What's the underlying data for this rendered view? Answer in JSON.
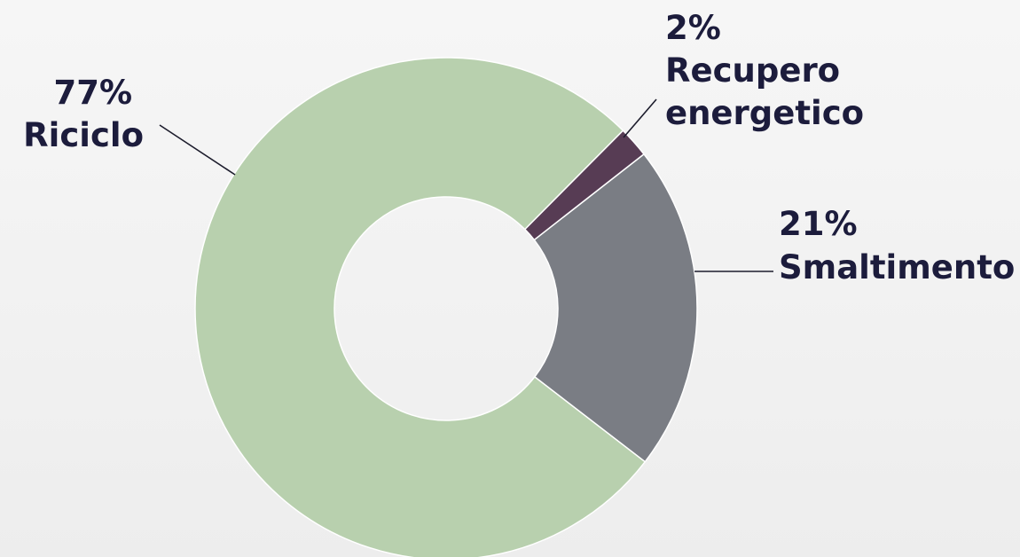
{
  "chart_data": {
    "type": "pie",
    "variant": "donut",
    "unit": "%",
    "slices": [
      {
        "label": "Smaltimento",
        "value": 21,
        "value_label": "21%",
        "color": "#7a7d84"
      },
      {
        "label": "Riciclo",
        "value": 77,
        "value_label": "77%",
        "color": "#b8d0ae"
      },
      {
        "label": "Recupero energetico",
        "value": 2,
        "value_label": "2%",
        "color": "#573c54"
      }
    ],
    "label_lines": {
      "Smaltimento": [
        "21%",
        "Smaltimento"
      ],
      "Riciclo": [
        "77%",
        "Riciclo"
      ],
      "Recupero energetico": [
        "2%",
        "Recupero",
        "energetico"
      ]
    },
    "legend": "none"
  }
}
